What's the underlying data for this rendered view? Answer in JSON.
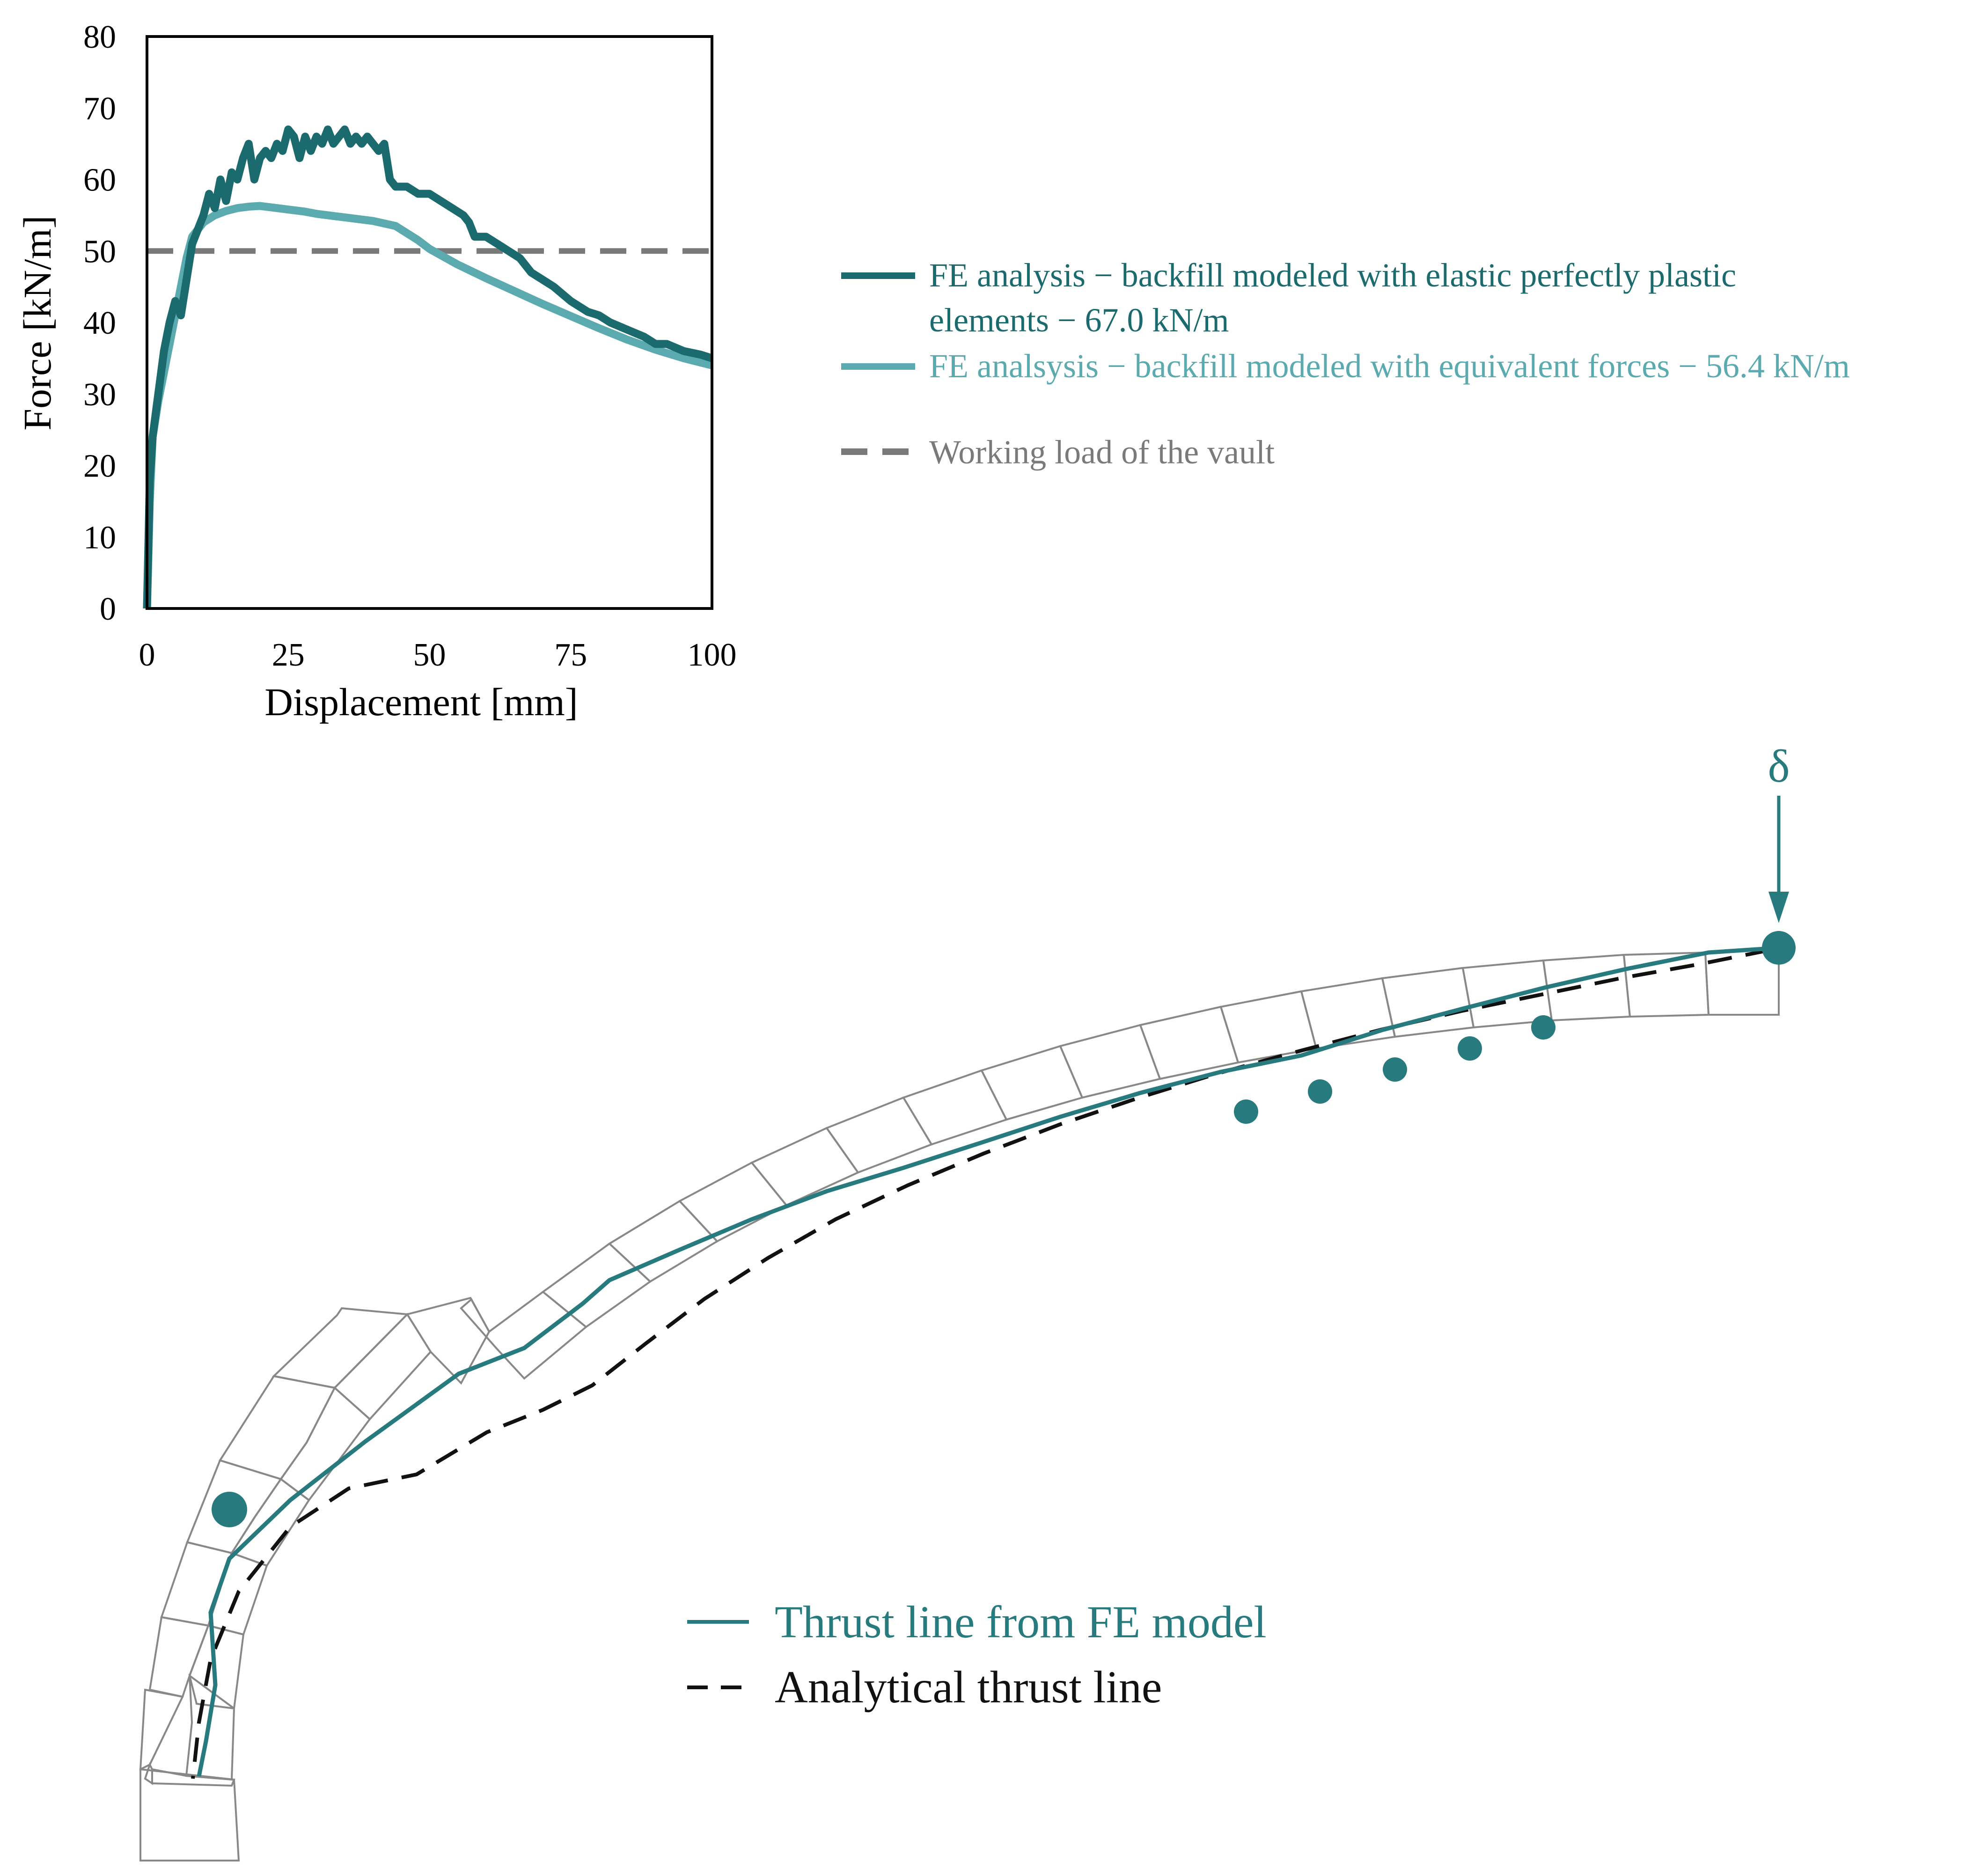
{
  "colors": {
    "dark_teal": "#1b6b6e",
    "light_teal": "#5aaab0",
    "working_load": "#7a7a7a",
    "thrust_fe": "#277a7e",
    "analytical": "#111111",
    "voussoir": "#888888"
  },
  "chart_data": {
    "type": "line",
    "xlabel": "Displacement [mm]",
    "ylabel": "Force [kN/m]",
    "xlim": [
      0,
      100
    ],
    "ylim": [
      0,
      80
    ],
    "xticks": [
      "0",
      "25",
      "50",
      "75",
      "100"
    ],
    "yticks": [
      "0",
      "10",
      "20",
      "30",
      "40",
      "50",
      "60",
      "70",
      "80"
    ],
    "grid": false,
    "legend_position": "right",
    "series": [
      {
        "name": "FE analysis − backfill modeled with elastic perfectly plastic elements − 67.0 kN/m",
        "legend_line1": "FE analysis − backfill modeled with elastic perfectly plastic",
        "legend_line2": "elements − 67.0 kN/m",
        "x": [
          0,
          0.5,
          1,
          2,
          3,
          4,
          5,
          6,
          7,
          8,
          9,
          10,
          11,
          12,
          13,
          14,
          15,
          16,
          17,
          18,
          19,
          20,
          21,
          22,
          23,
          24,
          25,
          26,
          27,
          28,
          29,
          30,
          31,
          32,
          33,
          34,
          35,
          36,
          37,
          38,
          39,
          40,
          41,
          42,
          43,
          44,
          46,
          48,
          50,
          52,
          54,
          56,
          57,
          58,
          59,
          60,
          62,
          64,
          66,
          68,
          70,
          72,
          75,
          78,
          80,
          82,
          85,
          88,
          90,
          92,
          95,
          98,
          100
        ],
        "y": [
          0,
          18,
          24,
          30,
          36,
          40,
          43,
          41,
          46,
          51,
          53,
          55,
          58,
          56,
          60,
          57,
          61,
          60,
          63,
          65,
          60,
          63,
          64,
          63,
          65,
          64,
          67,
          66,
          63,
          66,
          64,
          66,
          65,
          67,
          65,
          66,
          67,
          65,
          66,
          65,
          66,
          65,
          64,
          65,
          60,
          59,
          59,
          58,
          58,
          57,
          56,
          55,
          54,
          52,
          52,
          52,
          51,
          50,
          49,
          47,
          46,
          45,
          43,
          41.5,
          41,
          40,
          39,
          38,
          37,
          37,
          36,
          35.5,
          35
        ]
      },
      {
        "name": "FE analsysis − backfill modeled with equivalent forces − 56.4 kN/m",
        "legend_line1": "FE analsysis − backfill modeled with equivalent forces − 56.4 kN/m",
        "x": [
          0,
          0.5,
          1,
          2,
          3,
          4,
          5,
          6,
          7,
          8,
          9,
          10,
          12,
          14,
          16,
          18,
          20,
          22,
          25,
          28,
          30,
          33,
          36,
          40,
          44,
          46,
          48,
          50,
          55,
          60,
          65,
          70,
          75,
          80,
          85,
          90,
          95,
          100
        ],
        "y": [
          0,
          15,
          24,
          29,
          33,
          37,
          41,
          45,
          49,
          52,
          53,
          54,
          55,
          55.6,
          56,
          56.2,
          56.3,
          56.1,
          55.8,
          55.5,
          55.2,
          54.9,
          54.6,
          54.2,
          53.5,
          52.5,
          51.5,
          50.3,
          48.1,
          46.2,
          44.4,
          42.6,
          40.9,
          39.2,
          37.6,
          36.2,
          35,
          34
        ]
      },
      {
        "name": "Working load of the vault",
        "legend_line1": "Working load of the vault",
        "x": [
          0,
          100
        ],
        "y": [
          50,
          50
        ]
      }
    ]
  },
  "arch": {
    "load_symbol": "δ",
    "legend": {
      "fe_thrust": "Thrust line from FE model",
      "analytical_thrust": "Analytical thrust line"
    }
  }
}
